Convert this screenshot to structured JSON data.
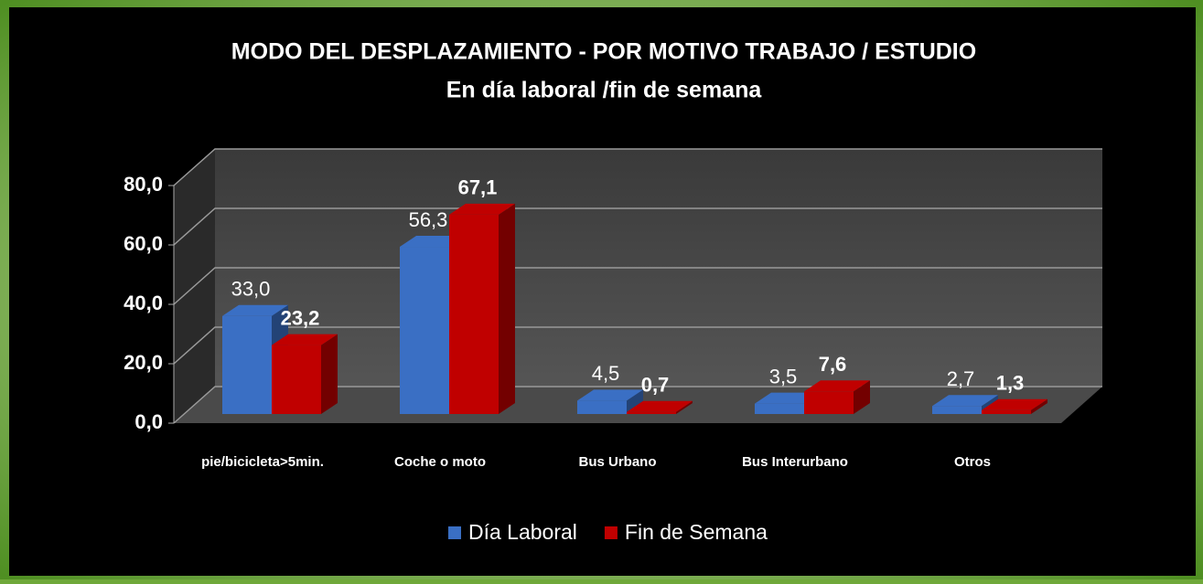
{
  "chart_data": {
    "type": "bar3d",
    "title": "MODO DEL DESPLAZAMIENTO - POR MOTIVO TRABAJO / ESTUDIO",
    "subtitle": "En día laboral /fin de semana",
    "categories": [
      "pie/bicicleta>5min.",
      "Coche o moto",
      "Bus Urbano",
      "Bus Interurbano",
      "Otros"
    ],
    "series": [
      {
        "name": "Día Laboral",
        "color": "#3a6fc4",
        "values": [
          33.0,
          56.3,
          4.5,
          3.5,
          2.7
        ],
        "value_labels": [
          "33,0",
          "56,3",
          "4,5",
          "3,5",
          "2,7"
        ]
      },
      {
        "name": "Fin de Semana",
        "color": "#c00000",
        "values": [
          23.2,
          67.1,
          0.7,
          7.6,
          1.3
        ],
        "value_labels": [
          "23,2",
          "67,1",
          "0,7",
          "7,6",
          "1,3"
        ]
      }
    ],
    "ylim": [
      0,
      80
    ],
    "yticks": [
      {
        "value": 0,
        "label": "0,0"
      },
      {
        "value": 20,
        "label": "20,0"
      },
      {
        "value": 40,
        "label": "40,0"
      },
      {
        "value": 60,
        "label": "60,0"
      },
      {
        "value": 80,
        "label": "80,0"
      }
    ],
    "grid": true,
    "legend": "bottom"
  }
}
